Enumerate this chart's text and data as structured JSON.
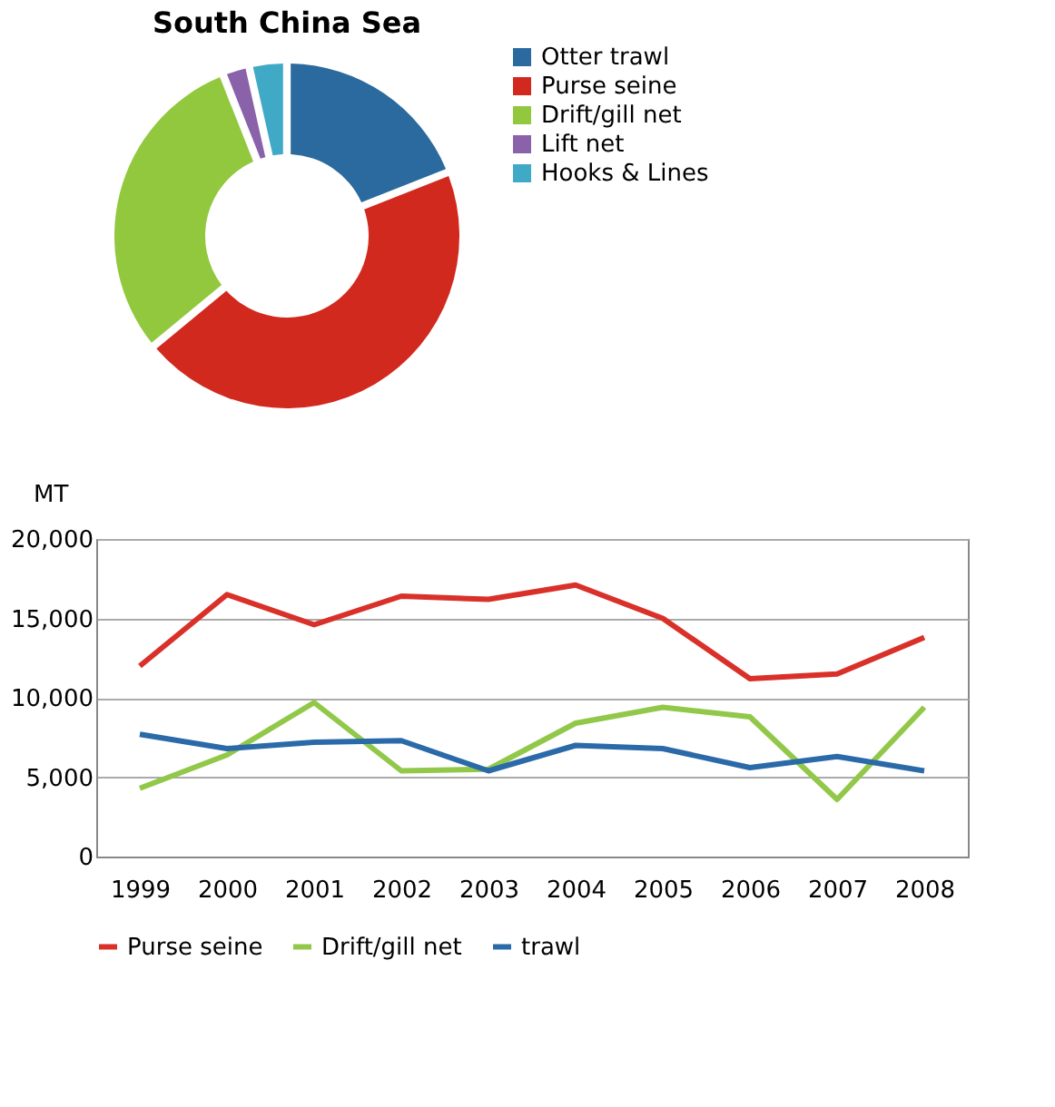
{
  "chart_data": [
    {
      "type": "donut",
      "title": "South China Sea",
      "categories": [
        "Otter trawl",
        "Purse seine",
        "Drift/gill net",
        "Lift net",
        "Hooks & Lines"
      ],
      "values": [
        19,
        45,
        30,
        2.5,
        3.5
      ],
      "colors": [
        "#2b6a9e",
        "#d2291f",
        "#92c83e",
        "#8a62aa",
        "#40aac6"
      ],
      "legend": "right"
    },
    {
      "type": "line",
      "ylabel": "MT",
      "categories": [
        "1999",
        "2000",
        "2001",
        "2002",
        "2003",
        "2004",
        "2005",
        "2006",
        "2007",
        "2008"
      ],
      "ylim": [
        0,
        20000
      ],
      "yticks": [
        0,
        {
          "value": 5000,
          "label": "5,000"
        },
        {
          "value": 10000,
          "label": "10,000"
        },
        {
          "value": 15000,
          "label": "15,000"
        },
        {
          "value": 20000,
          "label": "20,000"
        }
      ],
      "grid": "y",
      "legend": "bottom",
      "series": [
        {
          "name": "Purse seine",
          "color": "#d9312a",
          "values": [
            12000,
            16500,
            14600,
            16400,
            16200,
            17100,
            15000,
            11200,
            11500,
            13800
          ]
        },
        {
          "name": "Drift/gill net",
          "color": "#92c84a",
          "values": [
            4300,
            6400,
            9700,
            5400,
            5500,
            8400,
            9400,
            8800,
            3600,
            9400
          ]
        },
        {
          "name": "trawl",
          "color": "#2a6aa8",
          "values": [
            7700,
            6800,
            7200,
            7300,
            5400,
            7000,
            6800,
            5600,
            6300,
            5400
          ]
        }
      ]
    }
  ]
}
